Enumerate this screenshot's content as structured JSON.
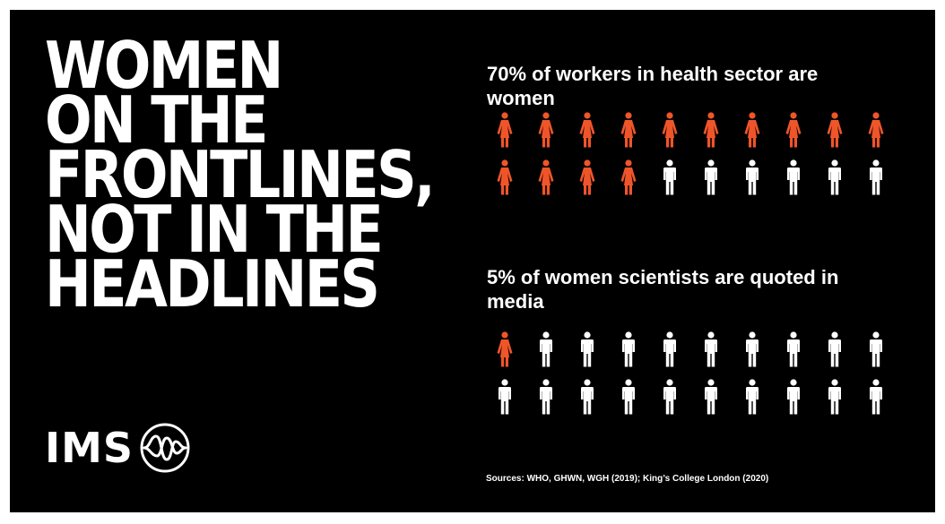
{
  "headline": {
    "lines": [
      "WOMEN",
      "ON THE",
      "FRONTLINES,",
      "NOT IN THE",
      "HEADLINES"
    ]
  },
  "logo": {
    "text": "IMS",
    "icon": "wave-circle-icon"
  },
  "colors": {
    "background": "#000000",
    "accent": "#f0552a",
    "neutral": "#ffffff"
  },
  "stats": [
    {
      "title": "70% of workers in health sector are women",
      "highlighted": 14,
      "total": 20,
      "highlight_icon": "woman-icon",
      "other_icon": "man-icon"
    },
    {
      "title": "5% of women scientists are quoted in media",
      "highlighted": 1,
      "total": 20,
      "highlight_icon": "woman-icon",
      "other_icon": "man-icon"
    }
  ],
  "sources": "Sources: WHO, GHWN, WGH (2019); King’s College London (2020)"
}
